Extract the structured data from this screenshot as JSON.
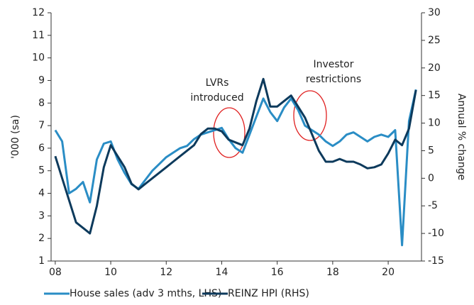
{
  "chart_data": {
    "type": "line",
    "y_label": "'000 (sa)",
    "y2_label": "Annual % change",
    "annotations": [
      {
        "lines": [
          "LVRs",
          "introduced"
        ]
      },
      {
        "lines": [
          "Investor",
          "restrictions"
        ]
      }
    ],
    "x": [
      2008.0,
      2008.25,
      2008.5,
      2008.75,
      2009.0,
      2009.25,
      2009.5,
      2009.75,
      2010.0,
      2010.25,
      2010.5,
      2010.75,
      2011.0,
      2011.25,
      2011.5,
      2011.75,
      2012.0,
      2012.25,
      2012.5,
      2012.75,
      2013.0,
      2013.25,
      2013.5,
      2013.75,
      2014.0,
      2014.25,
      2014.5,
      2014.75,
      2015.0,
      2015.25,
      2015.5,
      2015.75,
      2016.0,
      2016.25,
      2016.5,
      2016.75,
      2017.0,
      2017.25,
      2017.5,
      2017.75,
      2018.0,
      2018.25,
      2018.5,
      2018.75,
      2019.0,
      2019.25,
      2019.5,
      2019.75,
      2020.0,
      2020.25,
      2020.5,
      2020.75,
      2021.0
    ],
    "series": [
      {
        "name": "House sales (adv 3 mths, LHS)",
        "color": "#2a8dc5",
        "axis": "y",
        "values": [
          6.8,
          6.3,
          4.0,
          4.2,
          4.5,
          3.6,
          5.5,
          6.2,
          6.3,
          5.5,
          4.9,
          4.4,
          4.2,
          4.6,
          5.0,
          5.3,
          5.6,
          5.8,
          6.0,
          6.1,
          6.4,
          6.6,
          6.7,
          6.8,
          6.9,
          6.4,
          6.0,
          5.8,
          6.6,
          7.4,
          8.2,
          7.6,
          7.2,
          7.8,
          8.2,
          7.7,
          7.0,
          6.8,
          6.6,
          6.3,
          6.1,
          6.3,
          6.6,
          6.7,
          6.5,
          6.3,
          6.5,
          6.6,
          6.5,
          6.8,
          1.7,
          7.2,
          8.6
        ]
      },
      {
        "name": "REINZ HPI (RHS)",
        "color": "#0d3a5c",
        "axis": "y2",
        "values": [
          4,
          0,
          -4,
          -8,
          -9,
          -10,
          -5,
          2,
          6,
          4,
          2,
          -1,
          -2,
          -1,
          0,
          1,
          2,
          3,
          4,
          5,
          6,
          8,
          9,
          9,
          8.5,
          7,
          6.5,
          6,
          9,
          14,
          18,
          13,
          13,
          14,
          15,
          13,
          11,
          8,
          5,
          3,
          3,
          3.5,
          3,
          3,
          2.5,
          1.8,
          2,
          2.5,
          4.5,
          7,
          6,
          9,
          16
        ]
      }
    ],
    "xlim": [
      2007.85,
      2021.2
    ],
    "xticks": [
      {
        "value": 2008,
        "label": "08"
      },
      {
        "value": 2010,
        "label": "10"
      },
      {
        "value": 2012,
        "label": "12"
      },
      {
        "value": 2014,
        "label": "14"
      },
      {
        "value": 2016,
        "label": "16"
      },
      {
        "value": 2018,
        "label": "18"
      },
      {
        "value": 2020,
        "label": "20"
      }
    ],
    "ylim": [
      1,
      12
    ],
    "yticks": [
      1,
      2,
      3,
      4,
      5,
      6,
      7,
      8,
      9,
      10,
      11,
      12
    ],
    "y2lim": [
      -15,
      30
    ],
    "y2ticks": [
      -15,
      -10,
      -5,
      0,
      5,
      10,
      15,
      20,
      25,
      30
    ]
  }
}
